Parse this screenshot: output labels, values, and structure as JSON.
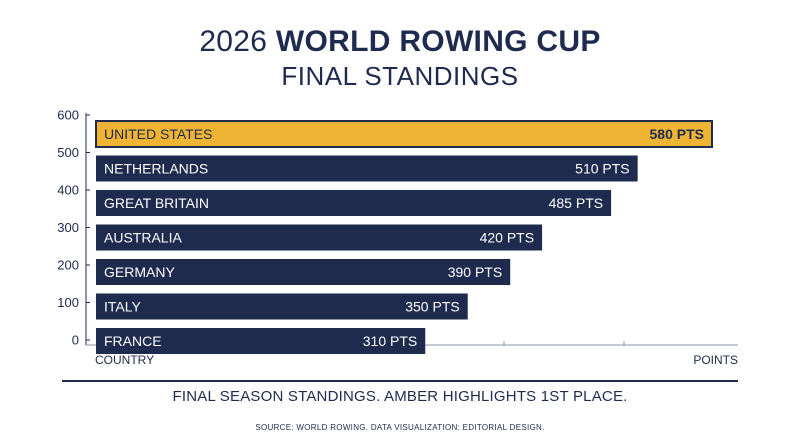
{
  "title_regular": "2026",
  "title_bold": "WORLD ROWING CUP",
  "subtitle": "FINAL STANDINGS",
  "caption": "FINAL SEASON STANDINGS. AMBER HIGHLIGHTS 1ST PLACE.",
  "source": "SOURCE: WORLD ROWING. DATA VISUALIZATION: EDITORIAL DESIGN.",
  "colors": {
    "bar": "#1e2b4f",
    "highlight": "#f0b435",
    "text": "#1e2b4f"
  },
  "chart_data": {
    "type": "bar",
    "orientation": "horizontal",
    "xlabel": "POINTS",
    "ylabel": "COUNTRY",
    "axis_ticks": [
      "0",
      "100",
      "200",
      "300",
      "400",
      "500",
      "600"
    ],
    "xlim": [
      0,
      600
    ],
    "categories": [
      "UNITED STATES",
      "NETHERLANDS",
      "GREAT BRITAIN",
      "AUSTRALIA",
      "GERMANY",
      "ITALY",
      "FRANCE"
    ],
    "values": [
      580,
      510,
      485,
      420,
      390,
      350,
      310
    ],
    "value_labels": [
      "580 PTS",
      "510 PTS",
      "485 PTS",
      "420 PTS",
      "390 PTS",
      "350 PTS",
      "310 PTS"
    ],
    "highlight_index": 0
  }
}
